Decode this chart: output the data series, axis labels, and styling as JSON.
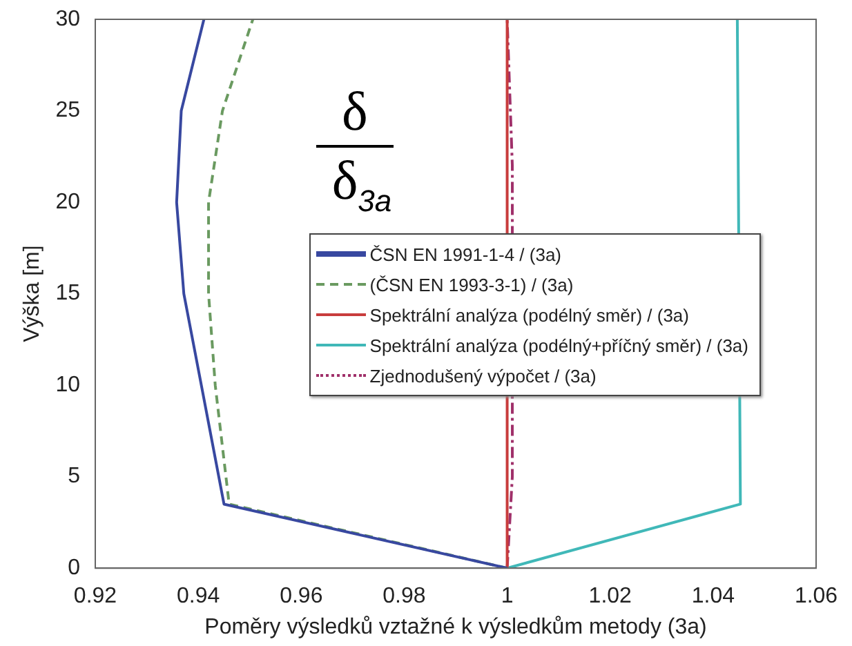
{
  "chart_data": {
    "type": "line",
    "xlabel": "Poměry výsledků vztažné k výsledkům metody (3a)",
    "ylabel": "Výška [m]",
    "annotations": [
      "δ",
      "δ$_{3a}$"
    ],
    "xlim": [
      0.92,
      1.06
    ],
    "xticks": [
      0.92,
      0.94,
      0.96,
      0.98,
      1,
      1.02,
      1.04,
      1.06
    ],
    "ylim": [
      0,
      30
    ],
    "yticks": [
      0,
      5,
      10,
      15,
      20,
      25,
      30
    ],
    "grid": false,
    "legend": "right",
    "marker": "none",
    "series": [
      {
        "name": "ČSN EN 1991-1-4 / (3a)",
        "color": "#3848a0",
        "line_style": "solid",
        "x": [
          1.0,
          0.945,
          0.9406,
          0.9372,
          0.9358,
          0.9367,
          0.9411
        ],
        "values": [
          0,
          3.5,
          10,
          15,
          20,
          25,
          30
        ]
      },
      {
        "name": "(ČSN EN 1993-3-1) / (3a)",
        "color": "#6a9a60",
        "line_style": "dashed",
        "x": [
          1.0,
          0.946,
          0.9433,
          0.942,
          0.942,
          0.9447,
          0.9506
        ],
        "values": [
          0,
          3.5,
          10,
          15,
          20,
          25,
          30
        ]
      },
      {
        "name": "Spektrální analýza (podélný směr) / (3a)",
        "color": "#c83c3c",
        "line_style": "solid",
        "x": [
          1.0,
          1.0
        ],
        "values": [
          0,
          30
        ]
      },
      {
        "name": "Spektrální analýza (podélný+příčný směr) / (3a)",
        "color": "#40b8b8",
        "line_style": "solid",
        "x": [
          1.0,
          1.0453,
          1.0447
        ],
        "values": [
          0,
          3.5,
          30
        ]
      },
      {
        "name": "Zjednodušený výpočet / (3a)",
        "color": "#a0306a",
        "line_style": "dashdot",
        "x": [
          1.0,
          1.001,
          1.001,
          1.001,
          1.0
        ],
        "values": [
          0,
          5,
          7,
          22,
          30
        ]
      }
    ]
  }
}
